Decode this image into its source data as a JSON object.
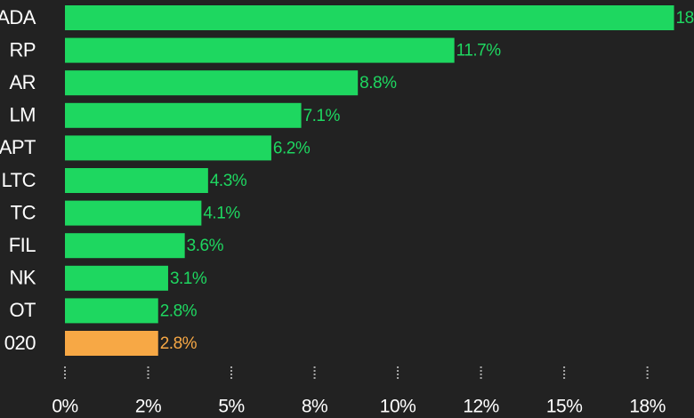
{
  "chart_data": {
    "type": "barh",
    "categories": [
      "ADA",
      "RP",
      "AR",
      "LM",
      "APT",
      "LTC",
      "TC",
      "FIL",
      "NK",
      "OT",
      "020"
    ],
    "values": [
      18.3,
      11.7,
      8.8,
      7.1,
      6.2,
      4.3,
      4.1,
      3.6,
      3.1,
      2.8,
      2.8
    ],
    "value_labels": [
      "18",
      "11.7%",
      "8.8%",
      "7.1%",
      "6.2%",
      "4.3%",
      "4.1%",
      "3.6%",
      "3.1%",
      "2.8%",
      "2.8%"
    ],
    "colors": [
      "#1ed760",
      "#1ed760",
      "#1ed760",
      "#1ed760",
      "#1ed760",
      "#1ed760",
      "#1ed760",
      "#1ed760",
      "#1ed760",
      "#1ed760",
      "#f7a845"
    ],
    "xlim": [
      0,
      18.9
    ],
    "xticks": [
      0,
      {
        "value": 2.5,
        "label": "2%"
      },
      {
        "value": 5,
        "label": "5%"
      },
      {
        "value": 7.5,
        "label": "8%"
      },
      {
        "value": 10,
        "label": "10%"
      },
      {
        "value": 12.5,
        "label": "12%"
      },
      {
        "value": 15,
        "label": "15%"
      },
      {
        "value": 17.5,
        "label": "18%"
      }
    ],
    "xtick_zero_label": "0%"
  }
}
